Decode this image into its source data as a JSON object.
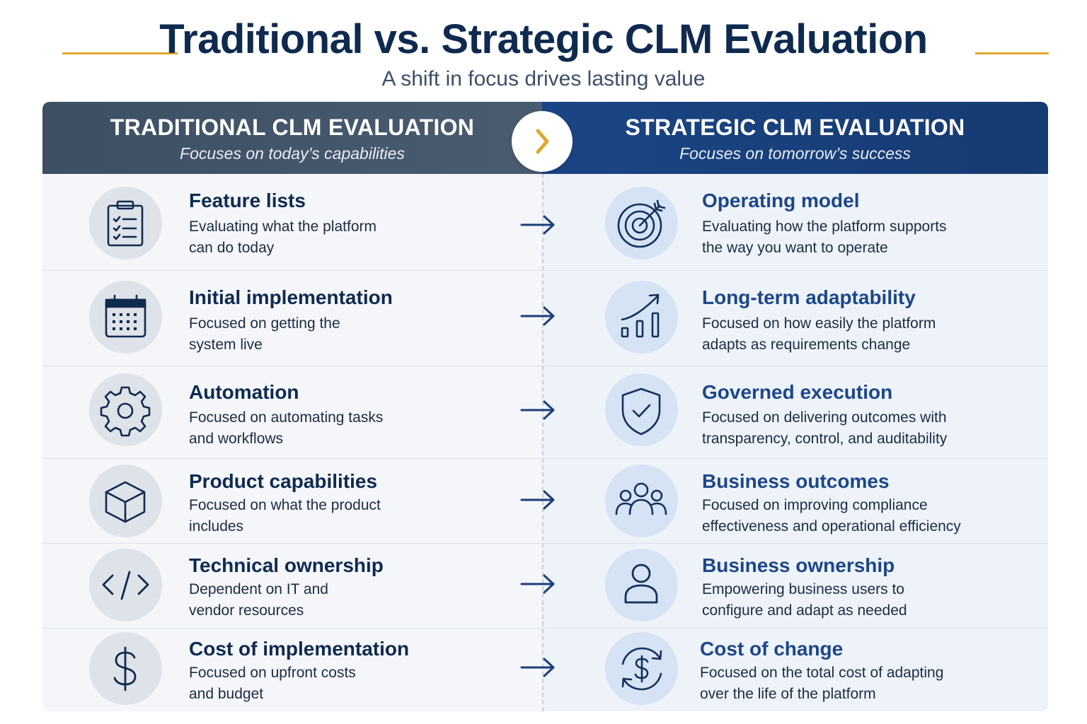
{
  "title": "Traditional vs. Strategic CLM Evaluation",
  "subtitle": "A shift in focus drives lasting value",
  "colors": {
    "accent_line": "#E0A82E",
    "title": "#0F2A4F",
    "left_header": "#3D4F63",
    "right_header": "#1A4585",
    "right_title": "#1C4689"
  },
  "left": {
    "header": "TRADITIONAL CLM EVALUATION",
    "subheader": "Focuses on today’s capabilities",
    "items": [
      {
        "icon": "clipboard-checklist-icon",
        "title": "Feature lists",
        "desc": "Evaluating what the platform\ncan do today"
      },
      {
        "icon": "calendar-icon",
        "title": "Initial implementation",
        "desc": "Focused on getting the\nsystem live"
      },
      {
        "icon": "gear-icon",
        "title": "Automation",
        "desc": "Focused on automating tasks\nand workflows"
      },
      {
        "icon": "cube-icon",
        "title": "Product capabilities",
        "desc": "Focused on what the product\nincludes"
      },
      {
        "icon": "code-icon",
        "title": "Technical ownership",
        "desc": "Dependent on IT and\nvendor resources"
      },
      {
        "icon": "dollar-icon",
        "title": "Cost of implementation",
        "desc": "Focused on upfront costs\nand budget"
      }
    ]
  },
  "right": {
    "header": "STRATEGIC CLM EVALUATION",
    "subheader": "Focuses on tomorrow’s success",
    "items": [
      {
        "icon": "target-icon",
        "title": "Operating model",
        "desc": "Evaluating how the platform supports\nthe way you want to operate"
      },
      {
        "icon": "growth-chart-icon",
        "title": "Long-term adaptability",
        "desc": "Focused on how easily the platform\nadapts as requirements change"
      },
      {
        "icon": "shield-check-icon",
        "title": "Governed execution",
        "desc": "Focused on delivering outcomes with\ntransparency, control, and auditability"
      },
      {
        "icon": "people-group-icon",
        "title": "Business outcomes",
        "desc": "Focused on improving compliance\neffectiveness and operational efficiency"
      },
      {
        "icon": "user-icon",
        "title": "Business ownership",
        "desc": "Empowering business users to\nconfigure and adapt as needed"
      },
      {
        "icon": "dollar-cycle-icon",
        "title": "Cost of change",
        "desc": "Focused on the total cost of adapting\nover the life of the platform"
      }
    ]
  }
}
